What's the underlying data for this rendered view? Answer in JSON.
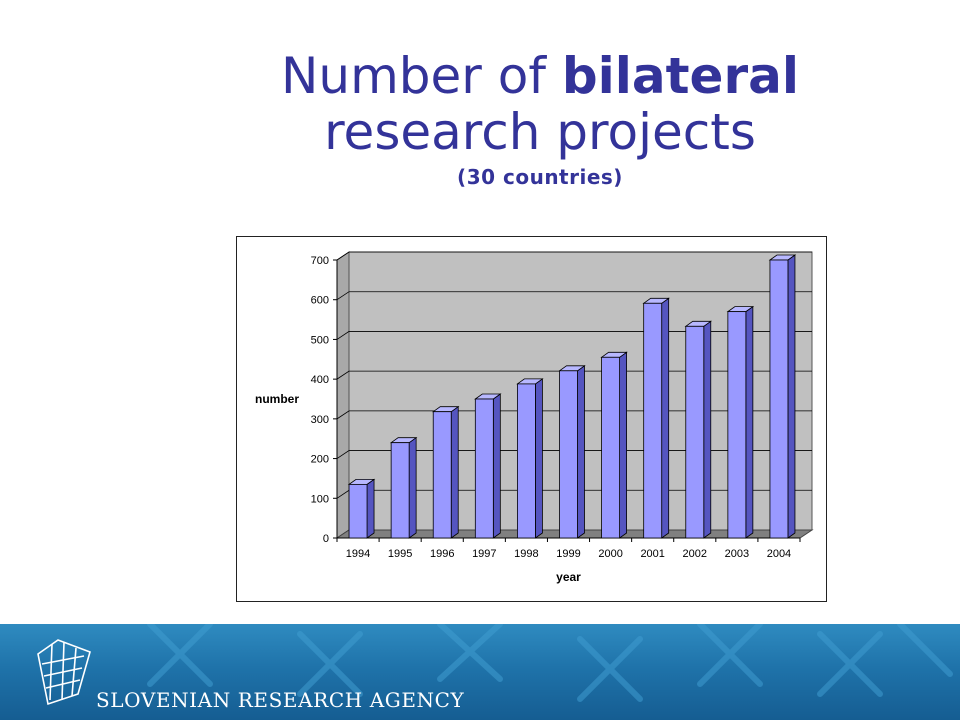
{
  "title": {
    "line1_prefix": "Number of ",
    "line1_bold": "bilateral",
    "line2": "research projects",
    "subtitle": "(30 countries)"
  },
  "footer": {
    "agency_name": "SLOVENIAN RESEARCH AGENCY"
  },
  "colors": {
    "title": "#333399",
    "bar_front": "#9999ff",
    "bar_side": "#5555c0",
    "bar_top": "#b8b8ff",
    "plot_wall": "#c0c0c0",
    "floor": "#808080",
    "footer": "#1f73aa"
  },
  "chart_data": {
    "type": "bar",
    "style": "3d-column",
    "categories": [
      "1994",
      "1995",
      "1996",
      "1997",
      "1998",
      "1999",
      "2000",
      "2001",
      "2002",
      "2003",
      "2004"
    ],
    "values": [
      135,
      240,
      318,
      350,
      388,
      421,
      455,
      591,
      533,
      570,
      700
    ],
    "xlabel": "year",
    "ylabel": "number",
    "ylim": [
      0,
      700
    ],
    "yticks": [
      0,
      100,
      200,
      300,
      400,
      500,
      600,
      700
    ],
    "grid": true,
    "legend": "none"
  }
}
